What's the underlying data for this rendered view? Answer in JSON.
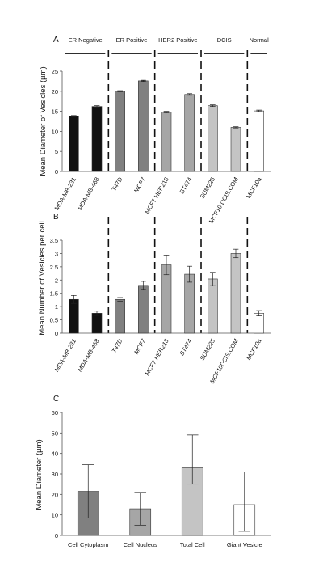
{
  "chart_data": [
    {
      "panel": "A",
      "type": "bar",
      "ylabel": "Mean Diameter of Vesicles (µm)",
      "ylim": [
        0,
        25
      ],
      "yticks": [
        0,
        5,
        10,
        15,
        20,
        25
      ],
      "groups": [
        {
          "name": "ER Negative",
          "start": 0,
          "end": 1
        },
        {
          "name": "ER Positive",
          "start": 2,
          "end": 3
        },
        {
          "name": "HER2 Positive",
          "start": 4,
          "end": 5
        },
        {
          "name": "DCIS",
          "start": 6,
          "end": 7
        },
        {
          "name": "Normal",
          "start": 8,
          "end": 8
        }
      ],
      "categories": [
        "MDA-MB-231",
        "MDA-MB-468",
        "T47D",
        "MCF7",
        "MCF7 HER218",
        "BT474",
        "SUM225",
        "MCF10 DCIS.COM",
        "MCF10a"
      ],
      "values": [
        13.8,
        16.2,
        20.0,
        22.6,
        14.8,
        19.2,
        16.4,
        11.0,
        15.1
      ],
      "errors": [
        0.15,
        0.2,
        0.15,
        0.15,
        0.2,
        0.2,
        0.2,
        0.15,
        0.2
      ],
      "colors": [
        "#111111",
        "#111111",
        "#808080",
        "#808080",
        "#a6a6a6",
        "#a6a6a6",
        "#c4c4c4",
        "#c4c4c4",
        "#ffffff"
      ],
      "grid": false
    },
    {
      "panel": "B",
      "type": "bar",
      "ylabel": "Mean Number of Vesicles per cell",
      "ylim": [
        0,
        3.5
      ],
      "yticks": [
        0,
        0.5,
        1,
        1.5,
        2,
        2.5,
        3,
        3.5
      ],
      "categories": [
        "MDA-MB-231",
        "MDA-MB-468",
        "T47D",
        "MCF7",
        "MCF7 HER218",
        "BT474",
        "SUM225",
        "MCF10DCIS.COM",
        "MCF10a"
      ],
      "values": [
        1.27,
        0.75,
        1.27,
        1.8,
        2.57,
        2.22,
        2.04,
        3.0,
        0.75
      ],
      "errors": [
        0.15,
        0.08,
        0.07,
        0.15,
        0.37,
        0.3,
        0.25,
        0.16,
        0.1
      ],
      "colors": [
        "#111111",
        "#111111",
        "#808080",
        "#808080",
        "#a6a6a6",
        "#a6a6a6",
        "#c4c4c4",
        "#c4c4c4",
        "#ffffff"
      ],
      "grid": false
    },
    {
      "panel": "C",
      "type": "bar",
      "ylabel": "Mean Diameter (µm)",
      "ylim": [
        0,
        60
      ],
      "yticks": [
        0,
        10,
        20,
        30,
        40,
        50,
        60
      ],
      "categories": [
        "Cell Cytoplasm",
        "Cell Nucleus",
        "Total Cell",
        "Giant Vesicle"
      ],
      "values": [
        21.5,
        13.0,
        33.0,
        15.0
      ],
      "error_high": [
        34.5,
        21.0,
        49.0,
        31.0
      ],
      "error_low": [
        8.5,
        5.0,
        25.0,
        2.0
      ],
      "colors": [
        "#808080",
        "#a6a6a6",
        "#c4c4c4",
        "#ffffff"
      ],
      "grid": false
    }
  ]
}
